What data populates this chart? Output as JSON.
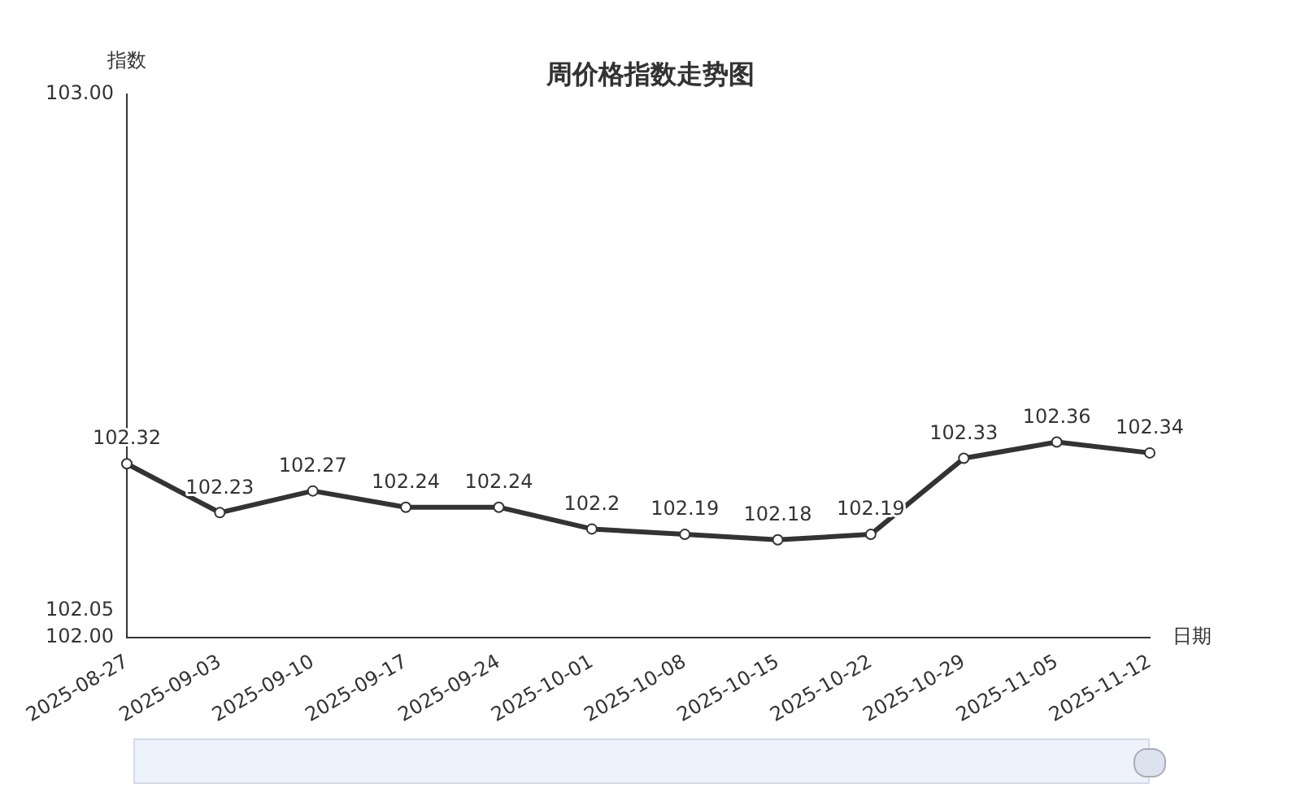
{
  "chart_data": {
    "type": "line",
    "title": "周价格指数走势图",
    "xlabel": "日期",
    "ylabel": "指数",
    "categories": [
      "2025-08-27",
      "2025-09-03",
      "2025-09-10",
      "2025-09-17",
      "2025-09-24",
      "2025-10-01",
      "2025-10-08",
      "2025-10-15",
      "2025-10-22",
      "2025-10-29",
      "2025-11-05",
      "2025-11-12"
    ],
    "series": [
      {
        "color": "#333333",
        "values": [
          102.32,
          102.23,
          102.27,
          102.24,
          102.24,
          102.2,
          102.19,
          102.18,
          102.19,
          102.33,
          102.36,
          102.34
        ]
      }
    ],
    "ylim": [
      102,
      103
    ],
    "yticks": [
      {
        "value": 102,
        "label": "102.00"
      },
      {
        "value": 102.05,
        "label": "102.05"
      },
      {
        "value": 103,
        "label": "103.00"
      }
    ],
    "grid": false,
    "legend": false,
    "marker": "circle",
    "line_style": "solid",
    "data_labels": true
  }
}
